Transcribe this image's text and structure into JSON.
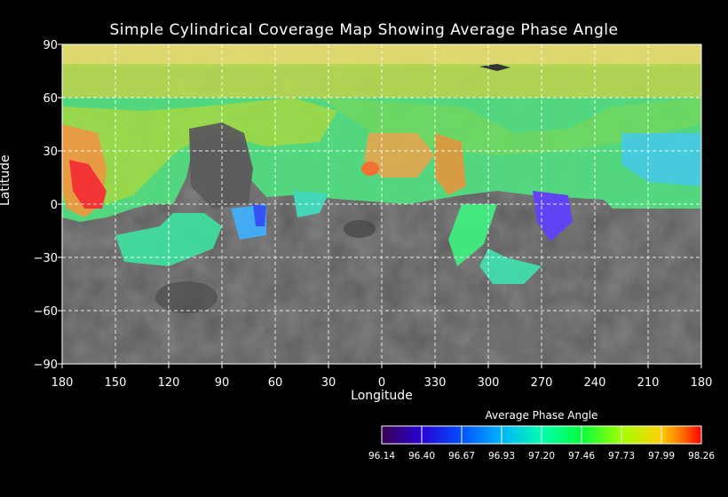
{
  "title": "Simple Cylindrical Coverage Map Showing Average Phase Angle",
  "xlabel": "Longitude",
  "ylabel": "Latitude",
  "x_ticks": [
    "180",
    "150",
    "120",
    "90",
    "60",
    "30",
    "0",
    "330",
    "300",
    "270",
    "240",
    "210",
    "180"
  ],
  "y_ticks": [
    "90",
    "60",
    "30",
    "0",
    "−30",
    "−60",
    "−90"
  ],
  "colorbar": {
    "title": "Average Phase Angle",
    "ticks": [
      "96.14",
      "96.40",
      "96.67",
      "96.93",
      "97.20",
      "97.46",
      "97.73",
      "97.99",
      "98.26"
    ],
    "colors": [
      "#3a0050",
      "#2a00d0",
      "#0050ff",
      "#00b0ff",
      "#00ffb0",
      "#00ff40",
      "#a0ff00",
      "#ffd000",
      "#ff7000",
      "#ff0000"
    ]
  },
  "map": {
    "longitude_range": [
      180,
      -180
    ],
    "latitude_range": [
      -90,
      90
    ],
    "grid": "dashed",
    "basemap_colors": {
      "surface": "#5a5a5a",
      "dark": "#3a3a3a",
      "light": "#7a7a7a"
    }
  }
}
